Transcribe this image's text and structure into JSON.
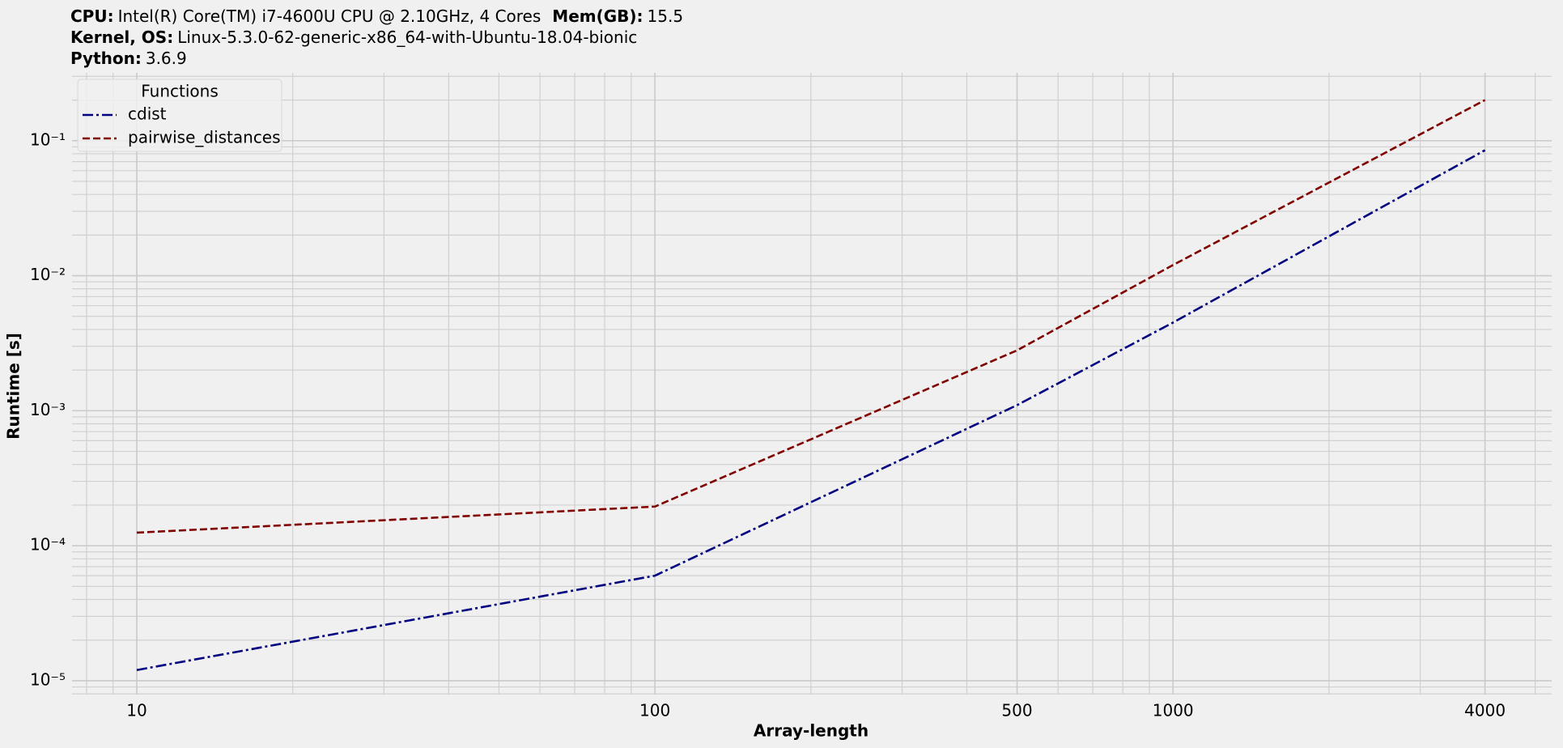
{
  "chart_data": {
    "type": "line",
    "info": [
      [
        {
          "label": "CPU:",
          "value": "Intel(R) Core(TM) i7-4600U CPU @ 2.10GHz, 4 Cores"
        },
        {
          "label": "Mem(GB):",
          "value": "15.5"
        }
      ],
      [
        {
          "label": "Kernel, OS:",
          "value": "Linux-5.3.0-62-generic-x86_64-with-Ubuntu-18.04-bionic"
        }
      ],
      [
        {
          "label": "Python:",
          "value": "3.6.9"
        }
      ]
    ],
    "x_label": "Array-length",
    "y_label": "Runtime [s]",
    "x": [
      10,
      100,
      500,
      1000,
      4000
    ],
    "series": [
      {
        "name": "cdist",
        "color": "#000080",
        "linestyle": "-.",
        "values": [
          1.2e-05,
          6e-05,
          0.0011,
          0.0045,
          0.085
        ]
      },
      {
        "name": "pairwise_distances",
        "color": "#800000",
        "linestyle": "--",
        "values": [
          0.000125,
          0.000195,
          0.0028,
          0.012,
          0.2
        ]
      }
    ],
    "x_log": true,
    "y_log": true,
    "xlim": [
      7.5,
      5380
    ],
    "ylim": [
      7.9e-06,
      0.318
    ],
    "xticks": [
      10,
      100,
      500,
      1000,
      4000
    ],
    "yticks": [
      {
        "value": 1e-05,
        "label": "10⁻⁵"
      },
      {
        "value": 0.0001,
        "label": "10⁻⁴"
      },
      {
        "value": 0.001,
        "label": "10⁻³"
      },
      {
        "value": 0.01,
        "label": "10⁻²"
      },
      {
        "value": 0.1,
        "label": "10⁻¹"
      }
    ],
    "grid": true,
    "minor_grid": true,
    "legend_title": "Functions",
    "legend_position": "upper left"
  }
}
